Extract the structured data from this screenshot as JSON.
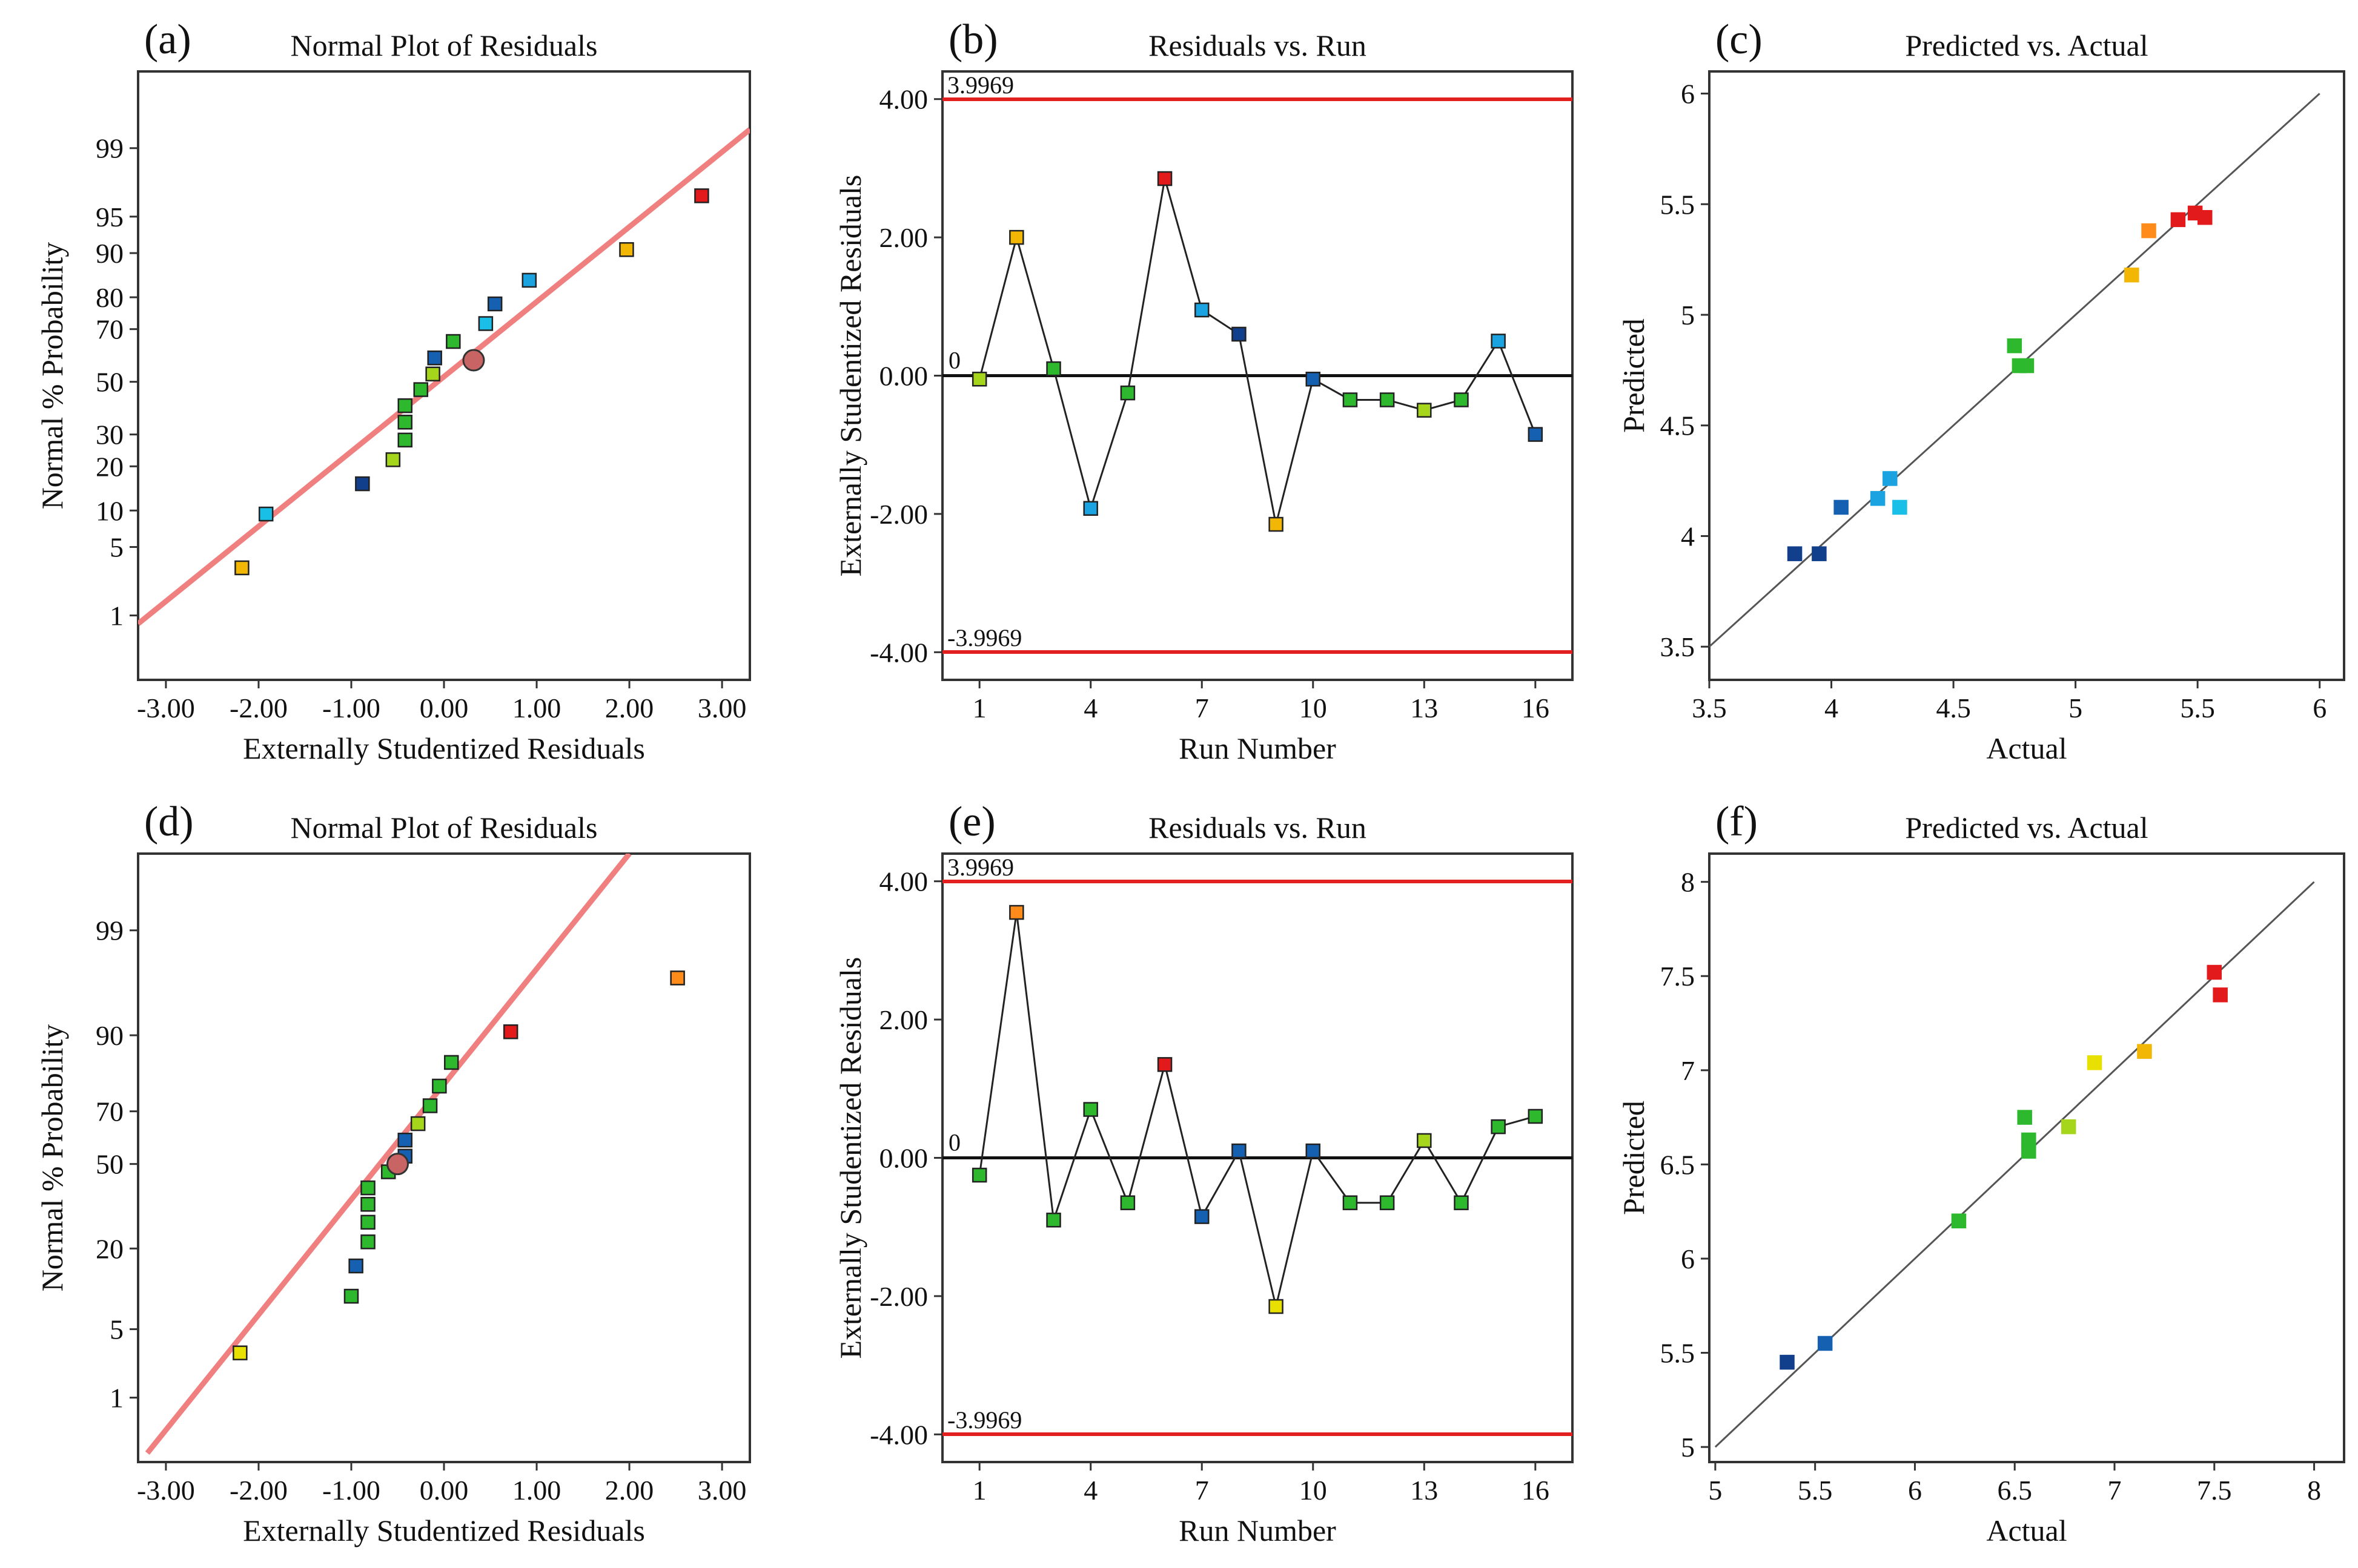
{
  "colors": {
    "red": "#e31a1c",
    "orange": "#ff8c1a",
    "gold": "#f2b705",
    "yellow": "#e8e000",
    "yellowgreen": "#a6d61c",
    "green": "#2db82d",
    "cyan": "#19bfe6",
    "lightblue": "#1aa3e0",
    "blue": "#1560b0",
    "navy": "#123f8c",
    "fitline": "#f08080",
    "limitline": "#e32020",
    "centerpoint": "#c86464"
  },
  "chart_data": [
    {
      "panel_label": "(a)",
      "type": "scatter",
      "title": "Normal Plot of Residuals",
      "xlabel": "Externally Studentized Residuals",
      "ylabel": "Normal % Probability",
      "xlim": [
        -3.3,
        3.3
      ],
      "ylim": [
        0.15,
        99.9
      ],
      "y_scale": "normal-probability",
      "x_ticks": [
        "-3.00",
        "-2.00",
        "-1.00",
        "0.00",
        "1.00",
        "2.00",
        "3.00"
      ],
      "y_ticks": [
        "1",
        "5",
        "10",
        "20",
        "30",
        "50",
        "70",
        "80",
        "90",
        "95",
        "99"
      ],
      "fit_line": {
        "from": [
          -3.3,
          0.8
        ],
        "to": [
          3.3,
          99.4
        ]
      },
      "center_point": [
        0.32,
        58.5
      ],
      "points": [
        {
          "x": -2.18,
          "y": 3.2,
          "c": "gold"
        },
        {
          "x": -1.92,
          "y": 9.4,
          "c": "cyan"
        },
        {
          "x": -0.88,
          "y": 15.5,
          "c": "navy"
        },
        {
          "x": -0.55,
          "y": 21.9,
          "c": "yellowgreen"
        },
        {
          "x": -0.42,
          "y": 28.1,
          "c": "green"
        },
        {
          "x": -0.42,
          "y": 34.4,
          "c": "green"
        },
        {
          "x": -0.42,
          "y": 40.6,
          "c": "green"
        },
        {
          "x": -0.25,
          "y": 46.9,
          "c": "green"
        },
        {
          "x": -0.12,
          "y": 53.1,
          "c": "yellowgreen"
        },
        {
          "x": -0.1,
          "y": 59.4,
          "c": "blue"
        },
        {
          "x": 0.1,
          "y": 65.6,
          "c": "green"
        },
        {
          "x": 0.45,
          "y": 71.9,
          "c": "cyan"
        },
        {
          "x": 0.55,
          "y": 78.1,
          "c": "blue"
        },
        {
          "x": 0.92,
          "y": 84.4,
          "c": "lightblue"
        },
        {
          "x": 1.97,
          "y": 90.6,
          "c": "gold"
        },
        {
          "x": 2.78,
          "y": 96.8,
          "c": "red"
        }
      ]
    },
    {
      "panel_label": "(b)",
      "type": "line",
      "title": "Residuals vs. Run",
      "xlabel": "Run Number",
      "ylabel": "Externally Studentized Residuals",
      "xlim": [
        0.0,
        17.0
      ],
      "ylim": [
        -4.4,
        4.4
      ],
      "x_ticks": [
        "1",
        "4",
        "7",
        "10",
        "13",
        "16"
      ],
      "y_ticks": [
        "-4.00",
        "-2.00",
        "0.00",
        "2.00",
        "4.00"
      ],
      "limits": {
        "upper": 3.9969,
        "lower": -3.9969,
        "upper_label": "3.9969",
        "lower_label": "-3.9969"
      },
      "zero_line": {
        "value": 0,
        "label": "0"
      },
      "x": [
        1,
        2,
        3,
        4,
        5,
        6,
        7,
        8,
        9,
        10,
        11,
        12,
        13,
        14,
        15,
        16
      ],
      "y": [
        -0.05,
        2.0,
        0.1,
        -1.92,
        -0.25,
        2.85,
        0.95,
        0.6,
        -2.15,
        -0.05,
        -0.35,
        -0.35,
        -0.5,
        -0.35,
        0.5,
        -0.85
      ],
      "point_colors": [
        "yellowgreen",
        "gold",
        "green",
        "lightblue",
        "green",
        "red",
        "lightblue",
        "navy",
        "gold",
        "blue",
        "green",
        "green",
        "yellowgreen",
        "green",
        "lightblue",
        "blue"
      ]
    },
    {
      "panel_label": "(c)",
      "type": "scatter",
      "title": "Predicted vs. Actual",
      "xlabel": "Actual",
      "ylabel": "Predicted",
      "xlim": [
        3.5,
        6.1
      ],
      "ylim": [
        3.35,
        6.1
      ],
      "x_ticks": [
        "3.5",
        "4",
        "4.5",
        "5",
        "5.5",
        "6"
      ],
      "y_ticks": [
        "3.5",
        "4",
        "4.5",
        "5",
        "5.5",
        "6"
      ],
      "fit_line": {
        "from": [
          3.5,
          3.5
        ],
        "to": [
          6.0,
          6.0
        ]
      },
      "points": [
        {
          "x": 3.85,
          "y": 3.92,
          "c": "navy"
        },
        {
          "x": 3.95,
          "y": 3.92,
          "c": "navy"
        },
        {
          "x": 4.04,
          "y": 4.13,
          "c": "blue"
        },
        {
          "x": 4.19,
          "y": 4.17,
          "c": "lightblue"
        },
        {
          "x": 4.24,
          "y": 4.26,
          "c": "lightblue"
        },
        {
          "x": 4.28,
          "y": 4.13,
          "c": "cyan"
        },
        {
          "x": 4.75,
          "y": 4.86,
          "c": "green"
        },
        {
          "x": 4.77,
          "y": 4.77,
          "c": "green"
        },
        {
          "x": 4.8,
          "y": 4.77,
          "c": "green"
        },
        {
          "x": 5.23,
          "y": 5.18,
          "c": "gold"
        },
        {
          "x": 5.3,
          "y": 5.38,
          "c": "orange"
        },
        {
          "x": 5.42,
          "y": 5.43,
          "c": "red"
        },
        {
          "x": 5.49,
          "y": 5.46,
          "c": "red"
        },
        {
          "x": 5.53,
          "y": 5.44,
          "c": "red"
        }
      ]
    },
    {
      "panel_label": "(d)",
      "type": "scatter",
      "title": "Normal Plot of Residuals",
      "xlabel": "Externally Studentized Residuals",
      "ylabel": "Normal % Probability",
      "xlim": [
        -3.3,
        3.3
      ],
      "ylim": [
        0.15,
        99.9
      ],
      "y_scale": "normal-probability",
      "x_ticks": [
        "-3.00",
        "-2.00",
        "-1.00",
        "0.00",
        "1.00",
        "2.00",
        "3.00"
      ],
      "y_ticks": [
        "1",
        "5",
        "20",
        "50",
        "70",
        "90",
        "99"
      ],
      "fit_line": {
        "from": [
          -3.2,
          0.2
        ],
        "to": [
          2.0,
          99.9
        ]
      },
      "center_point": [
        -0.5,
        50.0
      ],
      "points": [
        {
          "x": -2.2,
          "y": 3.0,
          "c": "yellow"
        },
        {
          "x": -1.0,
          "y": 9.4,
          "c": "green"
        },
        {
          "x": -0.95,
          "y": 15.5,
          "c": "blue"
        },
        {
          "x": -0.82,
          "y": 21.9,
          "c": "green"
        },
        {
          "x": -0.82,
          "y": 28.1,
          "c": "green"
        },
        {
          "x": -0.82,
          "y": 34.4,
          "c": "green"
        },
        {
          "x": -0.82,
          "y": 40.6,
          "c": "green"
        },
        {
          "x": -0.6,
          "y": 46.9,
          "c": "green"
        },
        {
          "x": -0.42,
          "y": 53.1,
          "c": "blue"
        },
        {
          "x": -0.42,
          "y": 59.4,
          "c": "blue"
        },
        {
          "x": -0.28,
          "y": 65.6,
          "c": "yellowgreen"
        },
        {
          "x": -0.15,
          "y": 71.9,
          "c": "green"
        },
        {
          "x": -0.05,
          "y": 78.1,
          "c": "green"
        },
        {
          "x": 0.08,
          "y": 84.4,
          "c": "green"
        },
        {
          "x": 0.72,
          "y": 90.6,
          "c": "red"
        },
        {
          "x": 2.52,
          "y": 96.8,
          "c": "orange"
        }
      ]
    },
    {
      "panel_label": "(e)",
      "type": "line",
      "title": "Residuals vs. Run",
      "xlabel": "Run Number",
      "ylabel": "Externally Studentized Residuals",
      "xlim": [
        0.0,
        17.0
      ],
      "ylim": [
        -4.4,
        4.4
      ],
      "x_ticks": [
        "1",
        "4",
        "7",
        "10",
        "13",
        "16"
      ],
      "y_ticks": [
        "-4.00",
        "-2.00",
        "0.00",
        "2.00",
        "4.00"
      ],
      "limits": {
        "upper": 3.9969,
        "lower": -3.9969,
        "upper_label": "3.9969",
        "lower_label": "-3.9969"
      },
      "zero_line": {
        "value": 0,
        "label": "0"
      },
      "x": [
        1,
        2,
        3,
        4,
        5,
        6,
        7,
        8,
        9,
        10,
        11,
        12,
        13,
        14,
        15,
        16
      ],
      "y": [
        -0.25,
        3.55,
        -0.9,
        0.7,
        -0.65,
        1.35,
        -0.85,
        0.1,
        -2.15,
        0.1,
        -0.65,
        -0.65,
        0.25,
        -0.65,
        0.45,
        0.6
      ],
      "point_colors": [
        "green",
        "orange",
        "green",
        "green",
        "green",
        "red",
        "blue",
        "blue",
        "yellow",
        "blue",
        "green",
        "green",
        "yellowgreen",
        "green",
        "green",
        "green"
      ]
    },
    {
      "panel_label": "(f)",
      "type": "scatter",
      "title": "Predicted vs. Actual",
      "xlabel": "Actual",
      "ylabel": "Predicted",
      "xlim": [
        4.97,
        8.15
      ],
      "ylim": [
        4.92,
        8.15
      ],
      "x_ticks": [
        "5",
        "5.5",
        "6",
        "6.5",
        "7",
        "7.5",
        "8"
      ],
      "y_ticks": [
        "5",
        "5.5",
        "6",
        "6.5",
        "7",
        "7.5",
        "8"
      ],
      "fit_line": {
        "from": [
          5.0,
          5.0
        ],
        "to": [
          8.0,
          8.0
        ]
      },
      "points": [
        {
          "x": 5.36,
          "y": 5.45,
          "c": "navy"
        },
        {
          "x": 5.55,
          "y": 5.55,
          "c": "blue"
        },
        {
          "x": 6.22,
          "y": 6.2,
          "c": "green"
        },
        {
          "x": 6.55,
          "y": 6.75,
          "c": "green"
        },
        {
          "x": 6.57,
          "y": 6.63,
          "c": "green"
        },
        {
          "x": 6.57,
          "y": 6.57,
          "c": "green"
        },
        {
          "x": 6.77,
          "y": 6.7,
          "c": "yellowgreen"
        },
        {
          "x": 6.9,
          "y": 7.04,
          "c": "yellow"
        },
        {
          "x": 7.15,
          "y": 7.1,
          "c": "gold"
        },
        {
          "x": 7.5,
          "y": 7.52,
          "c": "red"
        },
        {
          "x": 7.53,
          "y": 7.4,
          "c": "red"
        }
      ]
    }
  ]
}
